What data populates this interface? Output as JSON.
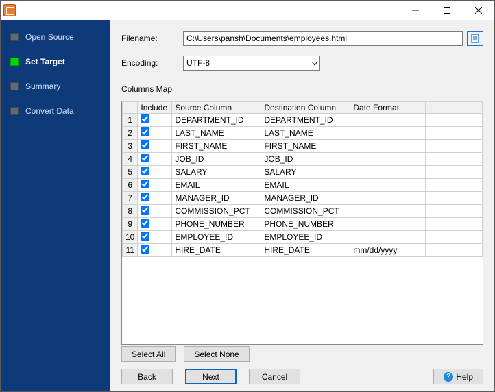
{
  "window": {
    "title": ""
  },
  "sidebar": {
    "items": [
      {
        "label": "Open Source",
        "active": false
      },
      {
        "label": "Set Target",
        "active": true
      },
      {
        "label": "Summary",
        "active": false
      },
      {
        "label": "Convert Data",
        "active": false
      }
    ]
  },
  "form": {
    "filename_label": "Filename:",
    "filename_value": "C:\\Users\\pansh\\Documents\\employees.html",
    "encoding_label": "Encoding:",
    "encoding_value": "UTF-8"
  },
  "columns_map": {
    "title": "Columns Map",
    "headers": {
      "include": "Include",
      "source": "Source Column",
      "dest": "Destination Column",
      "fmt": "Date Format"
    },
    "rows": [
      {
        "n": "1",
        "inc": true,
        "src": "DEPARTMENT_ID",
        "dst": "DEPARTMENT_ID",
        "fmt": ""
      },
      {
        "n": "2",
        "inc": true,
        "src": "LAST_NAME",
        "dst": "LAST_NAME",
        "fmt": ""
      },
      {
        "n": "3",
        "inc": true,
        "src": "FIRST_NAME",
        "dst": "FIRST_NAME",
        "fmt": ""
      },
      {
        "n": "4",
        "inc": true,
        "src": "JOB_ID",
        "dst": "JOB_ID",
        "fmt": ""
      },
      {
        "n": "5",
        "inc": true,
        "src": "SALARY",
        "dst": "SALARY",
        "fmt": ""
      },
      {
        "n": "6",
        "inc": true,
        "src": "EMAIL",
        "dst": "EMAIL",
        "fmt": ""
      },
      {
        "n": "7",
        "inc": true,
        "src": "MANAGER_ID",
        "dst": "MANAGER_ID",
        "fmt": ""
      },
      {
        "n": "8",
        "inc": true,
        "src": "COMMISSION_PCT",
        "dst": "COMMISSION_PCT",
        "fmt": ""
      },
      {
        "n": "9",
        "inc": true,
        "src": "PHONE_NUMBER",
        "dst": "PHONE_NUMBER",
        "fmt": ""
      },
      {
        "n": "10",
        "inc": true,
        "src": "EMPLOYEE_ID",
        "dst": "EMPLOYEE_ID",
        "fmt": ""
      },
      {
        "n": "11",
        "inc": true,
        "src": "HIRE_DATE",
        "dst": "HIRE_DATE",
        "fmt": "mm/dd/yyyy"
      }
    ]
  },
  "buttons": {
    "select_all": "Select All",
    "select_none": "Select None",
    "back": "Back",
    "next": "Next",
    "cancel": "Cancel",
    "help": "Help"
  }
}
